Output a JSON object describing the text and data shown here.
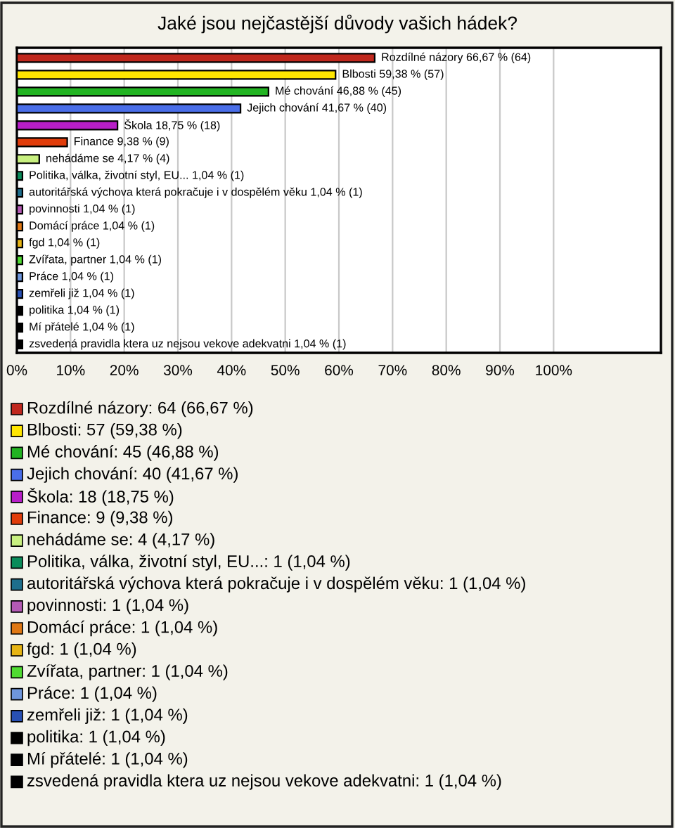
{
  "chart_data": {
    "type": "bar",
    "orientation": "horizontal",
    "title": "Jaké jsou nejčastější důvody vašich hádek?",
    "categories": [
      "Rozdílné názory",
      "Blbosti",
      "Mé chování",
      "Jejich chování",
      "Škola",
      "Finance",
      "nehádáme se",
      "Politika, válka, životní styl, EU...",
      "autoritářská výchova která pokračuje i v dospělém věku",
      "povinnosti",
      "Domácí práce",
      "fgd",
      "Zvířata, partner",
      "Práce",
      "zemřeli již",
      "politika",
      "Mí přátelé",
      "zsvedená pravidla ktera uz nejsou vekove adekvatni"
    ],
    "values": [
      66.67,
      59.38,
      46.88,
      41.67,
      18.75,
      9.38,
      4.17,
      1.04,
      1.04,
      1.04,
      1.04,
      1.04,
      1.04,
      1.04,
      1.04,
      1.04,
      1.04,
      1.04
    ],
    "value_labels": [
      "66,67 % (64)",
      "59,38 % (57)",
      "46,88 % (45)",
      "41,67 % (40)",
      "18,75 % (18)",
      "9,38 % (9)",
      "4,17 % (4)",
      "1,04 % (1)",
      "1,04 % (1)",
      "1,04 % (1)",
      "1,04 % (1)",
      "1,04 % (1)",
      "1,04 % (1)",
      "1,04 % (1)",
      "1,04 % (1)",
      "1,04 % (1)",
      "1,04 % (1)",
      "1,04 % (1)"
    ],
    "colors": [
      "#c0281e",
      "#ffe600",
      "#22b422",
      "#4a6ee8",
      "#b81ec8",
      "#e03c0a",
      "#c8f080",
      "#0a8c5a",
      "#1e6e8c",
      "#b45ab4",
      "#e07814",
      "#e6b414",
      "#50dc32",
      "#6e96dc",
      "#2850b4",
      "#000000",
      "#000000",
      "#000000"
    ],
    "xlim": [
      0,
      120
    ],
    "xticks": [
      {
        "value": 0,
        "label": "0%"
      },
      {
        "value": 10,
        "label": "10%"
      },
      {
        "value": 20,
        "label": "20%"
      },
      {
        "value": 30,
        "label": "30%"
      },
      {
        "value": 40,
        "label": "40%"
      },
      {
        "value": 50,
        "label": "50%"
      },
      {
        "value": 60,
        "label": "60%"
      },
      {
        "value": 70,
        "label": "70%"
      },
      {
        "value": 80,
        "label": "80%"
      },
      {
        "value": 90,
        "label": "90%"
      },
      {
        "value": 100,
        "label": "100%"
      }
    ],
    "grid": "x",
    "tick_labels": "x",
    "annotations": [
      "Rozdílné názory: 64 (66,67 %)",
      "Blbosti: 57 (59,38 %)",
      "Mé chování: 45 (46,88 %)",
      "Jejich chování: 40 (41,67 %)",
      "Škola: 18 (18,75 %)",
      "Finance: 9 (9,38 %)",
      "nehádáme se: 4 (4,17 %)",
      "Politika, válka, životní styl, EU...: 1 (1,04 %)",
      "autoritářská výchova která pokračuje i v dospělém věku: 1 (1,04 %)",
      "povinnosti: 1 (1,04 %)",
      "Domácí práce: 1 (1,04 %)",
      "fgd: 1 (1,04 %)",
      "Zvířata, partner: 1 (1,04 %)",
      "Práce: 1 (1,04 %)",
      "zemřeli již: 1 (1,04 %)",
      "politika: 1 (1,04 %)",
      "Mí přátelé: 1 (1,04 %)",
      "zsvedená pravidla ktera uz nejsou vekove adekvatni: 1 (1,04 %)"
    ]
  }
}
